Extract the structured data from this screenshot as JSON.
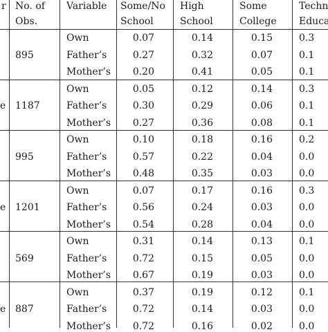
{
  "header": {
    "col_a": "r",
    "col_obs": [
      "No. of",
      "Obs."
    ],
    "col_variable": "Variable",
    "col_none": [
      "Some/No",
      "School"
    ],
    "col_high": [
      "High",
      "School"
    ],
    "col_college": [
      "Some",
      "College"
    ],
    "col_tech": [
      "Techn",
      "Educa"
    ]
  },
  "groups": [
    {
      "left_mark": "",
      "obs": "895",
      "rows": [
        {
          "variable": "Own",
          "none": "0.07",
          "high": "0.14",
          "college": "0.15",
          "tech": "0.3"
        },
        {
          "variable": "Father’s",
          "none": "0.27",
          "high": "0.32",
          "college": "0.07",
          "tech": "0.1"
        },
        {
          "variable": "Mother’s",
          "none": "0.20",
          "high": "0.41",
          "college": "0.05",
          "tech": "0.1"
        }
      ]
    },
    {
      "left_mark": "e",
      "obs": "1187",
      "rows": [
        {
          "variable": "Own",
          "none": "0.05",
          "high": "0.12",
          "college": "0.14",
          "tech": "0.3"
        },
        {
          "variable": "Father’s",
          "none": "0.30",
          "high": "0.29",
          "college": "0.06",
          "tech": "0.1"
        },
        {
          "variable": "Mother’s",
          "none": "0.27",
          "high": "0.36",
          "college": "0.08",
          "tech": "0.1"
        }
      ]
    },
    {
      "left_mark": "",
      "obs": "995",
      "rows": [
        {
          "variable": "Own",
          "none": "0.10",
          "high": "0.18",
          "college": "0.16",
          "tech": "0.2"
        },
        {
          "variable": "Father’s",
          "none": "0.57",
          "high": "0.22",
          "college": "0.04",
          "tech": "0.0"
        },
        {
          "variable": "Mother’s",
          "none": "0.48",
          "high": "0.35",
          "college": "0.03",
          "tech": "0.0"
        }
      ]
    },
    {
      "left_mark": "e",
      "obs": "1201",
      "rows": [
        {
          "variable": "Own",
          "none": "0.07",
          "high": "0.17",
          "college": "0.16",
          "tech": "0.3"
        },
        {
          "variable": "Father’s",
          "none": "0.56",
          "high": "0.24",
          "college": "0.03",
          "tech": "0.0"
        },
        {
          "variable": "Mother’s",
          "none": "0.54",
          "high": "0.28",
          "college": "0.04",
          "tech": "0.0"
        }
      ]
    },
    {
      "left_mark": "",
      "obs": "569",
      "rows": [
        {
          "variable": "Own",
          "none": "0.31",
          "high": "0.14",
          "college": "0.13",
          "tech": "0.1"
        },
        {
          "variable": "Father’s",
          "none": "0.72",
          "high": "0.15",
          "college": "0.05",
          "tech": "0.0"
        },
        {
          "variable": "Mother’s",
          "none": "0.67",
          "high": "0.19",
          "college": "0.03",
          "tech": "0.0"
        }
      ]
    },
    {
      "left_mark": "e",
      "obs": "887",
      "rows": [
        {
          "variable": "Own",
          "none": "0.37",
          "high": "0.19",
          "college": "0.12",
          "tech": "0.1"
        },
        {
          "variable": "Father’s",
          "none": "0.72",
          "high": "0.14",
          "college": "0.03",
          "tech": "0.0"
        },
        {
          "variable": "Mother’s",
          "none": "0.72",
          "high": "0.16",
          "college": "0.02",
          "tech": "0.0"
        }
      ]
    }
  ]
}
